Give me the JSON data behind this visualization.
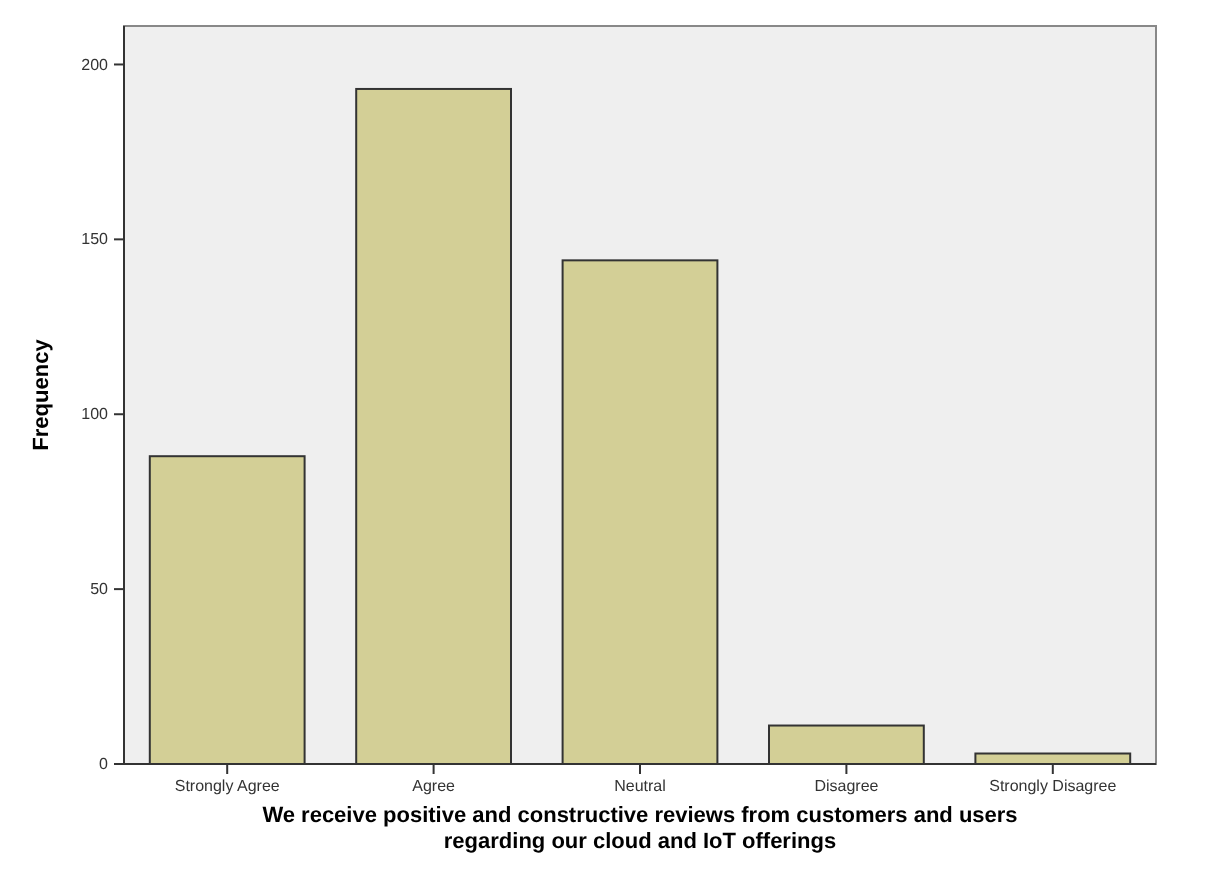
{
  "chart_data": {
    "type": "bar",
    "xlabel": "We receive positive and constructive reviews from customers and users\nregarding our cloud and IoT offerings",
    "ylabel": "Frequency",
    "categories": [
      "Strongly Agree",
      "Agree",
      "Neutral",
      "Disagree",
      "Strongly Disagree"
    ],
    "values": [
      88,
      193,
      144,
      11,
      3
    ],
    "color": "#d3cf96",
    "ylim": [
      0,
      211
    ],
    "yticks": [
      0,
      50,
      100,
      150,
      200
    ],
    "grid": false
  }
}
